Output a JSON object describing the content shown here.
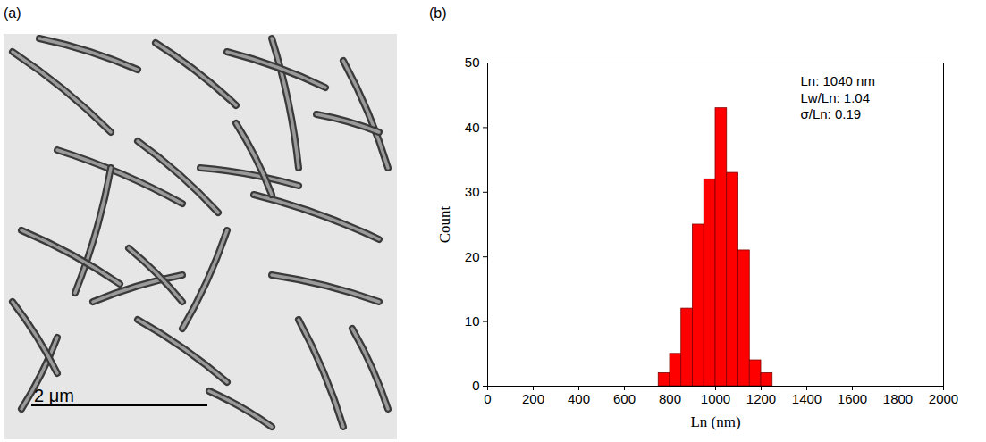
{
  "chart_data": [
    {
      "type": "image",
      "title": "(a)",
      "annotations": [
        "2 μm"
      ]
    },
    {
      "type": "histogram",
      "title": "(b)",
      "bins": [
        750,
        800,
        850,
        900,
        950,
        1000,
        1050,
        1100,
        1150,
        1200,
        1250
      ],
      "values": [
        2,
        5,
        12,
        25,
        32,
        43,
        33,
        21,
        4,
        2
      ],
      "color": "#ff0000",
      "xlabel": "Ln (nm)",
      "ylabel": "Count",
      "xlim": [
        0,
        2000
      ],
      "xticks": [
        0,
        200,
        400,
        600,
        800,
        1000,
        1200,
        1400,
        1600,
        1800,
        2000
      ],
      "ylim": [
        0,
        50
      ],
      "yticks": [
        0,
        10,
        20,
        30,
        40,
        50
      ],
      "annotations": [
        "Ln: 1040 nm",
        "Lw/Ln: 1.04",
        "σ/Ln: 0.19"
      ]
    }
  ]
}
